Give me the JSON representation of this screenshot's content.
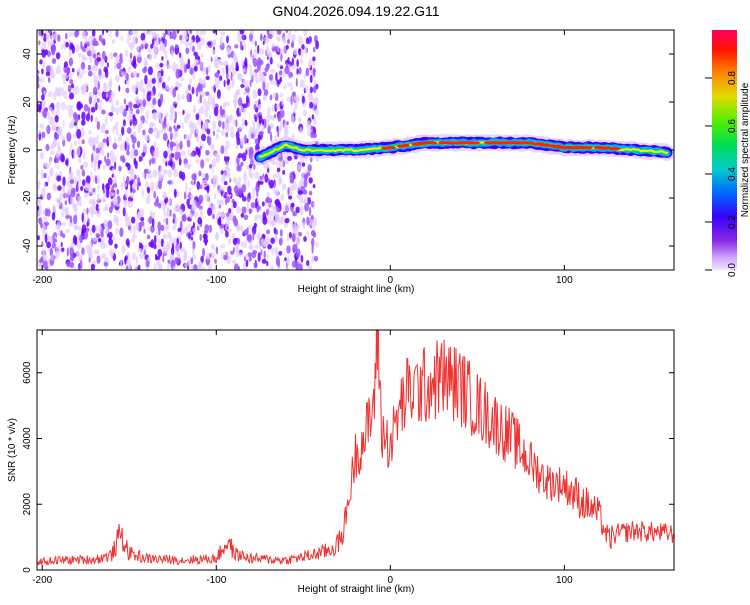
{
  "title": "GN04.2026.094.19.22.G11",
  "colors": {
    "snr_line": "#ee3333",
    "axis": "#000000",
    "scatter_low": "#e2ccff",
    "scatter_mid": "#9d55ff",
    "scatter_high": "#6a00ff"
  },
  "chart_data": [
    {
      "type": "heatmap",
      "xlabel": "Height of straight line (km)",
      "ylabel": "Frequency (Hz)",
      "xlim": [
        -203,
        163
      ],
      "ylim": [
        -50,
        50
      ],
      "x_ticks": [
        -200,
        -100,
        0,
        100
      ],
      "x_tick_labels": [
        "-200",
        "-100",
        "0",
        "100"
      ],
      "y_ticks": [
        -40,
        -20,
        0,
        20,
        40
      ],
      "y_tick_labels": [
        "-40",
        "-20",
        "0",
        "20",
        "40"
      ],
      "noise_region_km": [
        -203,
        -42
      ],
      "ridge": {
        "description_points_km": [
          -75,
          -60,
          -50,
          -40,
          -20,
          0,
          20,
          40,
          60,
          80,
          100,
          120,
          140,
          160
        ],
        "frequency_hz": [
          -3,
          2,
          0,
          0,
          0,
          1,
          3,
          3,
          3,
          3,
          1,
          1,
          0,
          -1
        ],
        "amplitude": [
          0.35,
          0.45,
          0.45,
          0.55,
          0.7,
          0.8,
          0.9,
          0.85,
          0.9,
          0.8,
          0.85,
          0.9,
          0.75,
          0.55
        ]
      },
      "colorbar": {
        "label": "Normalized spectral amplitude",
        "range": [
          0.0,
          1.0
        ],
        "ticks": [
          0.0,
          0.2,
          0.4,
          0.6,
          0.8
        ],
        "tick_labels": [
          "0.0",
          "0.2",
          "0.4",
          "0.6",
          "0.8"
        ]
      }
    },
    {
      "type": "line",
      "xlabel": "Height of straight line (km)",
      "ylabel": "SNR (10 * v/v)",
      "xlim": [
        -203,
        163
      ],
      "ylim": [
        0,
        7300
      ],
      "x_ticks": [
        -200,
        -100,
        0,
        100
      ],
      "x_tick_labels": [
        "-200",
        "-100",
        "0",
        "100"
      ],
      "y_ticks": [
        0,
        2000,
        4000,
        6000
      ],
      "y_tick_labels": [
        "0",
        "2000",
        "4000",
        "6000"
      ],
      "series": [
        {
          "name": "SNR",
          "x": [
            -203,
            -190,
            -170,
            -160,
            -155,
            -150,
            -140,
            -120,
            -100,
            -93,
            -90,
            -80,
            -60,
            -45,
            -35,
            -28,
            -25,
            -20,
            -15,
            -10,
            -7,
            -5,
            0,
            5,
            10,
            20,
            30,
            40,
            50,
            60,
            70,
            80,
            90,
            100,
            110,
            120,
            125,
            130,
            140,
            150,
            163
          ],
          "y": [
            250,
            300,
            320,
            450,
            1100,
            500,
            350,
            300,
            350,
            900,
            500,
            350,
            300,
            450,
            600,
            900,
            1800,
            3500,
            4000,
            4800,
            7300,
            4200,
            3800,
            4800,
            5400,
            5600,
            5900,
            5600,
            5000,
            4500,
            4000,
            3300,
            2700,
            2600,
            2100,
            1700,
            900,
            1100,
            1200,
            1150,
            1100
          ]
        }
      ]
    }
  ]
}
